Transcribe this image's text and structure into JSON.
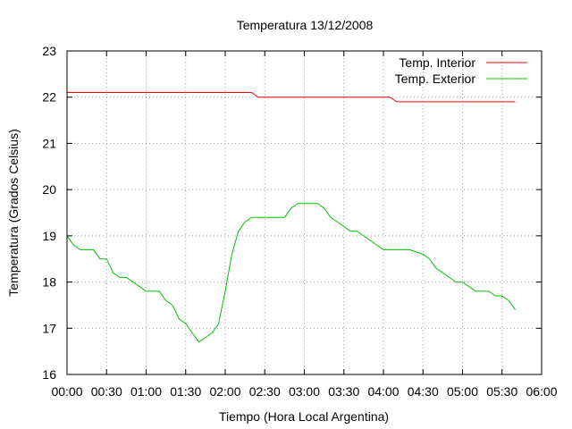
{
  "chart_data": {
    "type": "line",
    "title": "Temperatura 13/12/2008",
    "xlabel": "Tiempo (Hora Local Argentina)",
    "ylabel": "Temperatura (Grados Celsius)",
    "xlim": [
      "00:00",
      "06:00"
    ],
    "ylim": [
      16,
      23
    ],
    "x_ticks": [
      "00:00",
      "00:30",
      "01:00",
      "01:30",
      "02:00",
      "02:30",
      "03:00",
      "03:30",
      "04:00",
      "04:30",
      "05:00",
      "05:30",
      "06:00"
    ],
    "y_ticks": [
      "16",
      "17",
      "18",
      "19",
      "20",
      "21",
      "22",
      "23"
    ],
    "grid": true,
    "legend_position": "top-right",
    "series": [
      {
        "name": "Temp. Interior",
        "color": "#ff0000",
        "x": [
          "00:00",
          "02:20",
          "02:25",
          "04:05",
          "04:10",
          "05:40"
        ],
        "values": [
          22.1,
          22.1,
          22.0,
          22.0,
          21.9,
          21.9
        ]
      },
      {
        "name": "Temp. Exterior",
        "color": "#00c000",
        "x": [
          "00:00",
          "00:05",
          "00:10",
          "00:20",
          "00:25",
          "00:30",
          "00:35",
          "00:40",
          "00:45",
          "00:55",
          "01:00",
          "01:05",
          "01:10",
          "01:15",
          "01:20",
          "01:25",
          "01:30",
          "01:35",
          "01:40",
          "01:45",
          "01:50",
          "01:55",
          "02:00",
          "02:05",
          "02:10",
          "02:15",
          "02:20",
          "02:25",
          "02:30",
          "02:45",
          "02:50",
          "02:55",
          "03:00",
          "03:10",
          "03:15",
          "03:20",
          "03:30",
          "03:35",
          "03:40",
          "03:45",
          "03:50",
          "04:00",
          "04:05",
          "04:15",
          "04:20",
          "04:30",
          "04:35",
          "04:40",
          "04:45",
          "04:50",
          "04:55",
          "05:00",
          "05:05",
          "05:10",
          "05:15",
          "05:20",
          "05:25",
          "05:30",
          "05:35",
          "05:40"
        ],
        "values": [
          19.0,
          18.8,
          18.7,
          18.7,
          18.5,
          18.5,
          18.2,
          18.1,
          18.1,
          17.9,
          17.8,
          17.8,
          17.8,
          17.6,
          17.5,
          17.2,
          17.1,
          16.9,
          16.7,
          16.8,
          16.9,
          17.1,
          17.8,
          18.6,
          19.1,
          19.3,
          19.4,
          19.4,
          19.4,
          19.4,
          19.6,
          19.7,
          19.7,
          19.7,
          19.6,
          19.4,
          19.2,
          19.1,
          19.1,
          19.0,
          18.9,
          18.7,
          18.7,
          18.7,
          18.7,
          18.6,
          18.5,
          18.3,
          18.2,
          18.1,
          18.0,
          18.0,
          17.9,
          17.8,
          17.8,
          17.8,
          17.7,
          17.7,
          17.6,
          17.4
        ]
      }
    ]
  }
}
